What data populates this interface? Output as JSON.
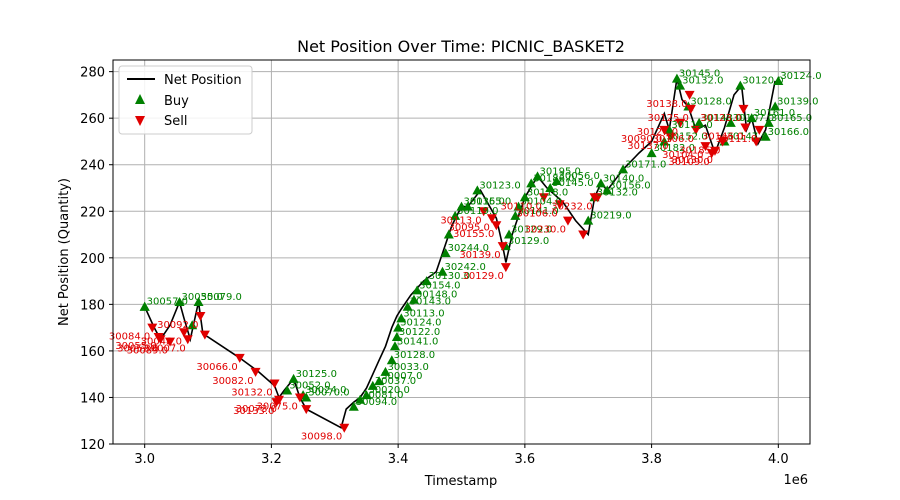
{
  "chart_data": {
    "type": "line",
    "title": "Net Position Over Time: PICNIC_BASKET2",
    "xlabel": "Timestamp",
    "ylabel": "Net Position (Quantity)",
    "x_offset_label": "1e6",
    "xlim": [
      2950000,
      4050000
    ],
    "ylim": [
      120,
      285
    ],
    "x_ticks": [
      3000000,
      3200000,
      3400000,
      3600000,
      3800000,
      4000000
    ],
    "x_tick_labels": [
      "3.0",
      "3.2",
      "3.4",
      "3.6",
      "3.8",
      "4.0"
    ],
    "y_ticks": [
      120,
      140,
      160,
      180,
      200,
      220,
      240,
      260,
      280
    ],
    "grid": true,
    "legend_position": "top-left",
    "colors": {
      "line": "#000000",
      "buy": "#008000",
      "sell": "#e00000"
    },
    "series": [
      {
        "name": "Net Position",
        "kind": "line",
        "x": [
          3000000,
          3015000,
          3025000,
          3040000,
          3055000,
          3062000,
          3072000,
          3085000,
          3092000,
          3100000,
          3150000,
          3180000,
          3205000,
          3212000,
          3220000,
          3235000,
          3245000,
          3255000,
          3310000,
          3318000,
          3330000,
          3340000,
          3350000,
          3360000,
          3370000,
          3380000,
          3390000,
          3398000,
          3405000,
          3420000,
          3440000,
          3460000,
          3470000,
          3485000,
          3500000,
          3510000,
          3530000,
          3555000,
          3565000,
          3570000,
          3580000,
          3600000,
          3620000,
          3635000,
          3660000,
          3680000,
          3700000,
          3710000,
          3720000,
          3730000,
          3755000,
          3780000,
          3800000,
          3820000,
          3828000,
          3840000,
          3848000,
          3858000,
          3870000,
          3885000,
          3900000,
          3915000,
          3930000,
          3942000,
          3950000,
          3958000,
          3968000,
          3980000,
          3995000
        ],
        "y": [
          179,
          170,
          165,
          171,
          181,
          174,
          165,
          181,
          167,
          166,
          157,
          151,
          145,
          140,
          143,
          148,
          140,
          135,
          127,
          135,
          138,
          140,
          144,
          150,
          156,
          162,
          170,
          175,
          178,
          184,
          190,
          194,
          202,
          214,
          222,
          222,
          229,
          217,
          205,
          198,
          210,
          226,
          235,
          230,
          224,
          216,
          210,
          226,
          232,
          229,
          238,
          245,
          250,
          262,
          255,
          277,
          268,
          265,
          255,
          257,
          245,
          256,
          270,
          274,
          255,
          260,
          249,
          255,
          276
        ]
      },
      {
        "name": "Buy",
        "kind": "scatter",
        "marker": "triangle-up",
        "points": [
          {
            "x": 3000000,
            "y": 179,
            "label": ""
          },
          {
            "x": 3000000,
            "y": 179,
            "label": "30057.0"
          },
          {
            "x": 3055000,
            "y": 181,
            "label": "30055.0"
          },
          {
            "x": 3085000,
            "y": 181,
            "label": "30079.0"
          },
          {
            "x": 3075000,
            "y": 171,
            "label": ""
          },
          {
            "x": 3225000,
            "y": 143,
            "label": "30052.0"
          },
          {
            "x": 3235000,
            "y": 148,
            "label": "30125.0"
          },
          {
            "x": 3250000,
            "y": 141,
            "label": "30024.0"
          },
          {
            "x": 3255000,
            "y": 140,
            "label": "30070.0"
          },
          {
            "x": 3330000,
            "y": 136,
            "label": "30094.0"
          },
          {
            "x": 3340000,
            "y": 139,
            "label": "30081.0"
          },
          {
            "x": 3350000,
            "y": 141,
            "label": "30020.0"
          },
          {
            "x": 3360000,
            "y": 145,
            "label": "30037.0"
          },
          {
            "x": 3370000,
            "y": 147,
            "label": "30007.0"
          },
          {
            "x": 3380000,
            "y": 151,
            "label": "30033.0"
          },
          {
            "x": 3390000,
            "y": 156,
            "label": "30128.0"
          },
          {
            "x": 3395000,
            "y": 162,
            "label": "30141.0"
          },
          {
            "x": 3398000,
            "y": 166,
            "label": "30122.0"
          },
          {
            "x": 3400000,
            "y": 170,
            "label": "30124.0"
          },
          {
            "x": 3405000,
            "y": 174,
            "label": "30113.0"
          },
          {
            "x": 3415000,
            "y": 179,
            "label": "30143.0"
          },
          {
            "x": 3425000,
            "y": 182,
            "label": "30148.0"
          },
          {
            "x": 3430000,
            "y": 186,
            "label": "30154.0"
          },
          {
            "x": 3445000,
            "y": 190,
            "label": "30130.0"
          },
          {
            "x": 3470000,
            "y": 194,
            "label": "30242.0"
          },
          {
            "x": 3475000,
            "y": 202,
            "label": "30244.0"
          },
          {
            "x": 3480000,
            "y": 210,
            "label": ""
          },
          {
            "x": 3490000,
            "y": 218,
            "label": "30119.0"
          },
          {
            "x": 3500000,
            "y": 222,
            "label": "30135.0"
          },
          {
            "x": 3510000,
            "y": 222,
            "label": "30165.0"
          },
          {
            "x": 3525000,
            "y": 229,
            "label": "30123.0"
          },
          {
            "x": 3570000,
            "y": 205,
            "label": "30129.0"
          },
          {
            "x": 3575000,
            "y": 210,
            "label": "30129.0"
          },
          {
            "x": 3585000,
            "y": 218,
            "label": "30141.0"
          },
          {
            "x": 3590000,
            "y": 222,
            "label": "30104.0"
          },
          {
            "x": 3600000,
            "y": 226,
            "label": "30118.0"
          },
          {
            "x": 3610000,
            "y": 232,
            "label": "30186.0"
          },
          {
            "x": 3620000,
            "y": 235,
            "label": "30195.0"
          },
          {
            "x": 3640000,
            "y": 230,
            "label": "30145.0"
          },
          {
            "x": 3650000,
            "y": 233,
            "label": "30056.0"
          },
          {
            "x": 3700000,
            "y": 216,
            "label": "30219.0"
          },
          {
            "x": 3710000,
            "y": 226,
            "label": "30132.0"
          },
          {
            "x": 3720000,
            "y": 232,
            "label": "30140.0"
          },
          {
            "x": 3730000,
            "y": 229,
            "label": "30156.0"
          },
          {
            "x": 3755000,
            "y": 238,
            "label": "30171.0"
          },
          {
            "x": 3800000,
            "y": 245,
            "label": "30182.0"
          },
          {
            "x": 3820000,
            "y": 250,
            "label": "30152.0"
          },
          {
            "x": 3828000,
            "y": 255,
            "label": "30111.0"
          },
          {
            "x": 3840000,
            "y": 277,
            "label": "30145.0"
          },
          {
            "x": 3845000,
            "y": 274,
            "label": "30132.0"
          },
          {
            "x": 3858000,
            "y": 265,
            "label": "30128.0"
          },
          {
            "x": 3875000,
            "y": 258,
            "label": "30148.0"
          },
          {
            "x": 3915000,
            "y": 250,
            "label": "30147.0"
          },
          {
            "x": 3925000,
            "y": 258,
            "label": "30107.0"
          },
          {
            "x": 3940000,
            "y": 274,
            "label": "30120.0"
          },
          {
            "x": 3958000,
            "y": 260,
            "label": "30161.0"
          },
          {
            "x": 3980000,
            "y": 252,
            "label": "30166.0"
          },
          {
            "x": 3985000,
            "y": 258,
            "label": "30165.0"
          },
          {
            "x": 3995000,
            "y": 265,
            "label": "30139.0"
          },
          {
            "x": 4000000,
            "y": 276,
            "label": "30124.0"
          }
        ]
      },
      {
        "name": "Sell",
        "kind": "scatter",
        "marker": "triangle-down",
        "points": [
          {
            "x": 3012000,
            "y": 170,
            "label": "30084.0"
          },
          {
            "x": 3025000,
            "y": 165,
            "label": "30052.0"
          },
          {
            "x": 3022000,
            "y": 166,
            "label": "30055.0"
          },
          {
            "x": 3040000,
            "y": 164,
            "label": "30089.0"
          },
          {
            "x": 3062000,
            "y": 168,
            "label": "30048.0"
          },
          {
            "x": 3068000,
            "y": 165,
            "label": "30007.0"
          },
          {
            "x": 3088000,
            "y": 175,
            "label": "30092.0"
          },
          {
            "x": 3095000,
            "y": 167,
            "label": ""
          },
          {
            "x": 3150000,
            "y": 157,
            "label": "30066.0"
          },
          {
            "x": 3175000,
            "y": 151,
            "label": "30082.0"
          },
          {
            "x": 3205000,
            "y": 146,
            "label": "30132.0"
          },
          {
            "x": 3212000,
            "y": 139,
            "label": "30073.0"
          },
          {
            "x": 3208000,
            "y": 138,
            "label": "30133.0"
          },
          {
            "x": 3245000,
            "y": 140,
            "label": "30075.0"
          },
          {
            "x": 3255000,
            "y": 135,
            "label": ""
          },
          {
            "x": 3315000,
            "y": 127,
            "label": "30098.0"
          },
          {
            "x": 3535000,
            "y": 220,
            "label": "30113.0"
          },
          {
            "x": 3548000,
            "y": 217,
            "label": "30095.0"
          },
          {
            "x": 3555000,
            "y": 214,
            "label": "30155.0"
          },
          {
            "x": 3565000,
            "y": 205,
            "label": "30139.0"
          },
          {
            "x": 3570000,
            "y": 196,
            "label": "30129.0"
          },
          {
            "x": 3630000,
            "y": 226,
            "label": "30110.0"
          },
          {
            "x": 3655000,
            "y": 223,
            "label": "30106.0"
          },
          {
            "x": 3668000,
            "y": 216,
            "label": "30230.0"
          },
          {
            "x": 3692000,
            "y": 210,
            "label": ""
          },
          {
            "x": 3710000,
            "y": 226,
            "label": "30232.0"
          },
          {
            "x": 3715000,
            "y": 226,
            "label": ""
          },
          {
            "x": 3820000,
            "y": 255,
            "label": "30090.0"
          },
          {
            "x": 3830000,
            "y": 252,
            "label": "30137.0"
          },
          {
            "x": 3845000,
            "y": 258,
            "label": "30127.0"
          },
          {
            "x": 3860000,
            "y": 270,
            "label": "30138.0"
          },
          {
            "x": 3862000,
            "y": 264,
            "label": "30125.0"
          },
          {
            "x": 3870000,
            "y": 255,
            "label": "30106.0"
          },
          {
            "x": 3885000,
            "y": 248,
            "label": "30104.0"
          },
          {
            "x": 3895000,
            "y": 245,
            "label": "30109.0"
          },
          {
            "x": 3900000,
            "y": 246,
            "label": "30130.0"
          },
          {
            "x": 3912000,
            "y": 250,
            "label": "30185.0"
          },
          {
            "x": 3945000,
            "y": 264,
            "label": "30123.0"
          },
          {
            "x": 3948000,
            "y": 256,
            "label": "30146.0"
          },
          {
            "x": 3965000,
            "y": 250,
            "label": ""
          },
          {
            "x": 3970000,
            "y": 255,
            "label": "30111.0"
          }
        ]
      }
    ]
  }
}
